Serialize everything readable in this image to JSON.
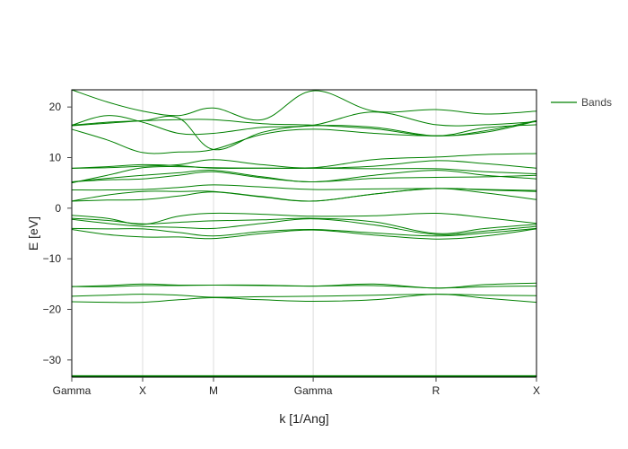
{
  "chart_data": {
    "type": "line",
    "title": "",
    "xlabel": "k [1/Ang]",
    "ylabel": "E [eV]",
    "ylim": [
      -33.4,
      23.4
    ],
    "yticks": [
      20,
      10,
      0,
      -10,
      -20,
      -30
    ],
    "ytick_labels": [
      "20",
      "10",
      "0",
      "−10",
      "−20",
      "−30"
    ],
    "kpoints": [
      {
        "label": "Gamma",
        "x": 0.0
      },
      {
        "label": "X",
        "x": 0.1525
      },
      {
        "label": "M",
        "x": 0.305
      },
      {
        "label": "Gamma",
        "x": 0.5195
      },
      {
        "label": "R",
        "x": 0.7838
      },
      {
        "label": "X",
        "x": 1.0
      }
    ],
    "grid": {
      "vertical_at_kpoints": true,
      "horizontal": false
    },
    "legend": {
      "position": "right-top",
      "entries": [
        "Bands"
      ]
    },
    "line_color": "#008000",
    "series": [
      {
        "name": "Bands",
        "x": [
          0,
          0.076,
          0.1525,
          0.23,
          0.305,
          0.41,
          0.5195,
          0.65,
          0.7838,
          0.89,
          1.0
        ],
        "values": [
          -33.2,
          -33.2,
          -33.2,
          -33.2,
          -33.2,
          -33.2,
          -33.2,
          -33.2,
          -33.2,
          -33.2,
          -33.2
        ]
      },
      {
        "name": "Bands",
        "x": [
          0,
          0.076,
          0.1525,
          0.23,
          0.305,
          0.41,
          0.5195,
          0.65,
          0.7838,
          0.89,
          1.0
        ],
        "values": [
          -18.5,
          -18.6,
          -18.6,
          -18.1,
          -17.7,
          -18.1,
          -18.4,
          -18.1,
          -17.0,
          -17.8,
          -18.6
        ]
      },
      {
        "name": "Bands",
        "x": [
          0,
          0.076,
          0.1525,
          0.23,
          0.305,
          0.41,
          0.5195,
          0.65,
          0.7838,
          0.89,
          1.0
        ],
        "values": [
          -17.4,
          -17.2,
          -17.0,
          -17.2,
          -17.6,
          -17.5,
          -17.4,
          -17.2,
          -17.0,
          -17.2,
          -17.3
        ]
      },
      {
        "name": "Bands",
        "x": [
          0,
          0.076,
          0.1525,
          0.23,
          0.305,
          0.41,
          0.5195,
          0.65,
          0.7838,
          0.89,
          1.0
        ],
        "values": [
          -15.5,
          -15.3,
          -15.0,
          -15.2,
          -15.2,
          -15.3,
          -15.4,
          -15.3,
          -15.8,
          -15.5,
          -15.4
        ]
      },
      {
        "name": "Bands",
        "x": [
          0,
          0.076,
          0.1525,
          0.23,
          0.305,
          0.41,
          0.5195,
          0.65,
          0.7838,
          0.89,
          1.0
        ],
        "values": [
          -15.5,
          -15.5,
          -15.3,
          -15.3,
          -15.2,
          -15.2,
          -15.4,
          -15.0,
          -15.8,
          -15.1,
          -14.8
        ]
      },
      {
        "name": "Bands",
        "x": [
          0,
          0.076,
          0.1525,
          0.23,
          0.305,
          0.41,
          0.5195,
          0.65,
          0.7838,
          0.89,
          1.0
        ],
        "values": [
          -4.2,
          -5.2,
          -5.7,
          -5.7,
          -6.0,
          -5.0,
          -4.3,
          -5.3,
          -6.1,
          -5.5,
          -4.1
        ]
      },
      {
        "name": "Bands",
        "x": [
          0,
          0.076,
          0.1525,
          0.23,
          0.305,
          0.41,
          0.5195,
          0.65,
          0.7838,
          0.89,
          1.0
        ],
        "values": [
          -4.0,
          -4.1,
          -4.1,
          -4.8,
          -5.5,
          -4.6,
          -4.2,
          -4.9,
          -5.5,
          -4.9,
          -4.0
        ]
      },
      {
        "name": "Bands",
        "x": [
          0,
          0.076,
          0.1525,
          0.23,
          0.305,
          0.41,
          0.5195,
          0.65,
          0.7838,
          0.89,
          1.0
        ],
        "values": [
          -2.2,
          -3.0,
          -3.6,
          -3.8,
          -4.0,
          -3.0,
          -2.1,
          -3.3,
          -5.2,
          -4.5,
          -3.6
        ]
      },
      {
        "name": "Bands",
        "x": [
          0,
          0.076,
          0.1525,
          0.23,
          0.305,
          0.41,
          0.5195,
          0.65,
          0.7838,
          0.89,
          1.0
        ],
        "values": [
          -2.0,
          -2.4,
          -3.1,
          -2.8,
          -2.5,
          -2.3,
          -2.0,
          -2.7,
          -5.0,
          -4.0,
          -3.2
        ]
      },
      {
        "name": "Bands",
        "x": [
          0,
          0.076,
          0.1525,
          0.23,
          0.305,
          0.41,
          0.5195,
          0.65,
          0.7838,
          0.89,
          1.0
        ],
        "values": [
          -1.4,
          -2.0,
          -3.2,
          -1.6,
          -1.0,
          -1.2,
          -1.6,
          -1.5,
          -1.0,
          -1.9,
          -3.0
        ]
      },
      {
        "name": "Bands",
        "x": [
          0,
          0.076,
          0.1525,
          0.23,
          0.305,
          0.41,
          0.5195,
          0.65,
          0.7838,
          0.89,
          1.0
        ],
        "values": [
          1.4,
          1.6,
          1.7,
          2.4,
          3.2,
          2.2,
          1.4,
          2.8,
          3.9,
          3.0,
          1.7
        ]
      },
      {
        "name": "Bands",
        "x": [
          0,
          0.076,
          0.1525,
          0.23,
          0.305,
          0.41,
          0.5195,
          0.65,
          0.7838,
          0.89,
          1.0
        ],
        "values": [
          1.4,
          2.6,
          3.3,
          3.3,
          3.3,
          2.3,
          1.4,
          2.8,
          3.9,
          3.6,
          3.3
        ]
      },
      {
        "name": "Bands",
        "x": [
          0,
          0.076,
          0.1525,
          0.23,
          0.305,
          0.41,
          0.5195,
          0.65,
          0.7838,
          0.89,
          1.0
        ],
        "values": [
          3.6,
          3.6,
          3.7,
          4.1,
          4.6,
          4.2,
          3.7,
          3.8,
          3.9,
          3.7,
          3.5
        ]
      },
      {
        "name": "Bands",
        "x": [
          0,
          0.076,
          0.1525,
          0.23,
          0.305,
          0.41,
          0.5195,
          0.65,
          0.7838,
          0.89,
          1.0
        ],
        "values": [
          5.2,
          5.6,
          5.8,
          6.5,
          7.2,
          6.0,
          5.2,
          5.9,
          6.1,
          6.2,
          6.5
        ]
      },
      {
        "name": "Bands",
        "x": [
          0,
          0.076,
          0.1525,
          0.23,
          0.305,
          0.41,
          0.5195,
          0.65,
          0.7838,
          0.89,
          1.0
        ],
        "values": [
          5.2,
          5.9,
          6.5,
          7.0,
          7.5,
          6.2,
          5.2,
          6.5,
          7.5,
          6.5,
          5.8
        ]
      },
      {
        "name": "Bands",
        "x": [
          0,
          0.076,
          0.1525,
          0.23,
          0.305,
          0.41,
          0.5195,
          0.65,
          0.7838,
          0.89,
          1.0
        ],
        "values": [
          5.0,
          6.5,
          8.0,
          8.2,
          8.0,
          7.9,
          7.9,
          7.8,
          7.8,
          7.2,
          6.8
        ]
      },
      {
        "name": "Bands",
        "x": [
          0,
          0.076,
          0.1525,
          0.23,
          0.305,
          0.41,
          0.5195,
          0.65,
          0.7838,
          0.89,
          1.0
        ],
        "values": [
          7.9,
          8.2,
          8.6,
          8.4,
          7.9,
          7.9,
          7.9,
          8.3,
          9.4,
          8.8,
          7.9
        ]
      },
      {
        "name": "Bands",
        "x": [
          0,
          0.076,
          0.1525,
          0.23,
          0.305,
          0.41,
          0.5195,
          0.65,
          0.7838,
          0.89,
          1.0
        ],
        "values": [
          7.9,
          8.0,
          8.3,
          8.6,
          9.6,
          8.6,
          8.0,
          9.6,
          10.1,
          10.6,
          10.8
        ]
      },
      {
        "name": "Bands",
        "x": [
          0,
          0.076,
          0.1525,
          0.23,
          0.305,
          0.41,
          0.5195,
          0.65,
          0.7838,
          0.89,
          1.0
        ],
        "values": [
          15.6,
          13.5,
          11.0,
          11.1,
          11.6,
          14.6,
          15.6,
          14.8,
          14.3,
          15.0,
          17.2
        ]
      },
      {
        "name": "Bands",
        "x": [
          0,
          0.076,
          0.1525,
          0.23,
          0.305,
          0.41,
          0.5195,
          0.65,
          0.7838,
          0.89,
          1.0
        ],
        "values": [
          16.4,
          17.0,
          17.3,
          17.5,
          17.5,
          16.7,
          16.4,
          15.7,
          14.3,
          15.9,
          16.5
        ]
      },
      {
        "name": "Bands",
        "x": [
          0,
          0.076,
          0.1525,
          0.23,
          0.305,
          0.41,
          0.5195,
          0.65,
          0.7838,
          0.89,
          1.0
        ],
        "values": [
          16.4,
          18.3,
          17.0,
          14.8,
          14.8,
          16.0,
          16.4,
          19.0,
          16.5,
          16.5,
          17.1
        ]
      },
      {
        "name": "Bands",
        "x": [
          0,
          0.076,
          0.1525,
          0.23,
          0.305,
          0.41,
          0.5195,
          0.65,
          0.7838,
          0.89,
          1.0
        ],
        "values": [
          23.4,
          21.0,
          19.2,
          18.3,
          19.8,
          17.5,
          23.2,
          19.2,
          19.5,
          18.6,
          19.2
        ]
      },
      {
        "name": "Bands",
        "x": [
          0,
          0.076,
          0.1525,
          0.23,
          0.305,
          0.41,
          0.5195,
          0.65,
          0.7838,
          0.89,
          1.0
        ],
        "values": [
          16.3,
          16.8,
          17.3,
          17.8,
          11.6,
          15.0,
          16.3,
          16.0,
          14.3,
          15.3,
          17.3
        ]
      }
    ]
  },
  "axes": {
    "xlabel": "k [1/Ang]",
    "ylabel": "E [eV]"
  },
  "legend": {
    "label": "Bands"
  }
}
